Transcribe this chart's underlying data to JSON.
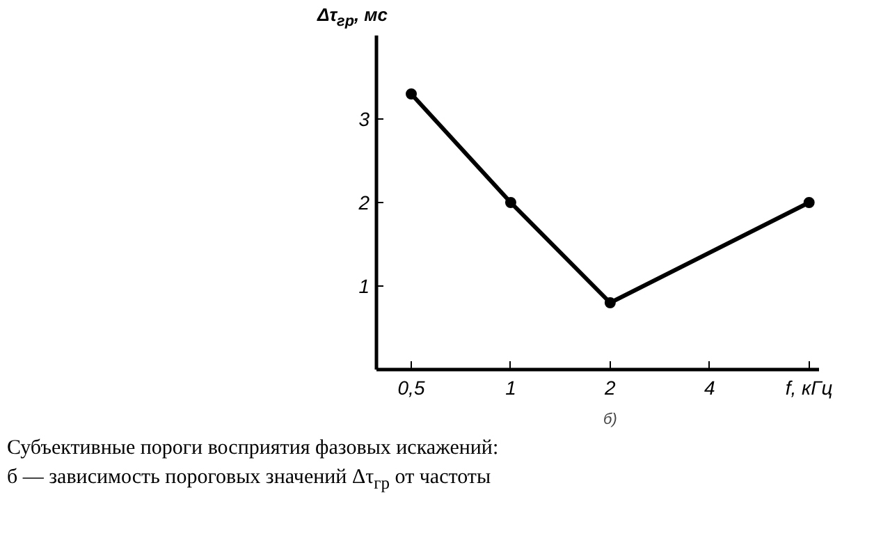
{
  "chart_data": {
    "type": "line",
    "xlabel": "f, кГц",
    "ylabel": "Δτ$_{гр}$, мс",
    "categories": [
      "0,5",
      "1",
      "2",
      "4",
      null
    ],
    "series": [
      {
        "color": "#000000",
        "values": [
          3.3,
          2.0,
          0.8,
          null,
          2.0
        ]
      }
    ],
    "ylim": [
      0,
      4
    ],
    "yticks": [
      1,
      2,
      3
    ],
    "grid": false,
    "marker": "circle",
    "line_style": "solid",
    "annotations": [
      "б)",
      "Субъективные пороги восприятия фазовых искажений:",
      "б — зависимость пороговых значений Δτ$_{гр}$ от частоты"
    ]
  }
}
